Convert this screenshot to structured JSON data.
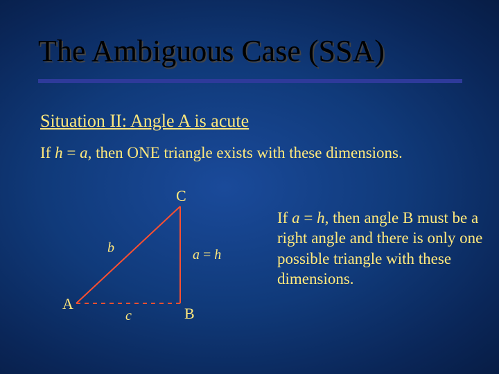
{
  "title": "The Ambiguous Case (SSA)",
  "subtitle": "Situation II:  Angle A is acute",
  "condition_line": {
    "pre": "If ",
    "h": "h",
    "eq": " = ",
    "a": "a",
    "post": ", then ONE triangle exists with these dimensions."
  },
  "explain": {
    "pre": "If ",
    "a": "a",
    "eq": " = ",
    "h": "h",
    "post": ", then angle B must be a right angle and there is only one possible triangle with these dimensions."
  },
  "diagram": {
    "labels": {
      "A": "A",
      "B": "B",
      "C": "C",
      "a_eq_h": "a = h",
      "b": "b",
      "c": "c"
    },
    "geometry": {
      "A": [
        20,
        160
      ],
      "B": [
        170,
        160
      ],
      "C": [
        170,
        20
      ]
    },
    "style": {
      "line_color": "#ff5030",
      "line_width": 2,
      "dash": "6,6",
      "label_color": "#ffe87c",
      "label_font_size": 22,
      "small_label_font_size": 20
    }
  },
  "colors": {
    "title": "#000000",
    "rule": "#2e3a9a",
    "text": "#ffe87c"
  }
}
